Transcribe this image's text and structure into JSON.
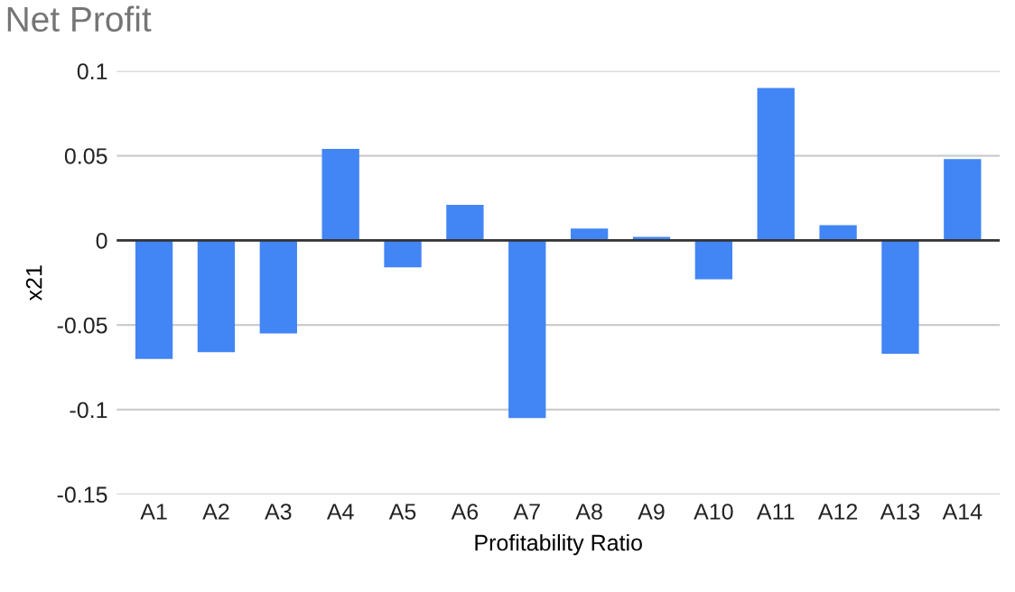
{
  "chart_data": {
    "type": "bar",
    "title": "Net Profit",
    "xlabel": "Profitability Ratio",
    "ylabel": "x21",
    "categories": [
      "A1",
      "A2",
      "A3",
      "A4",
      "A5",
      "A6",
      "A7",
      "A8",
      "A9",
      "A10",
      "A11",
      "A12",
      "A13",
      "A14"
    ],
    "series": [
      {
        "color": "#4285f4",
        "values": [
          -0.07,
          -0.066,
          -0.055,
          0.054,
          -0.016,
          0.021,
          -0.105,
          0.007,
          0.002,
          -0.023,
          0.09,
          0.009,
          -0.067,
          0.048
        ]
      }
    ],
    "ylim": [
      -0.15,
      0.1
    ],
    "yticks": [
      -0.15,
      -0.1,
      -0.05,
      0,
      0.05,
      0.1
    ],
    "grid": "y",
    "legend": false
  }
}
